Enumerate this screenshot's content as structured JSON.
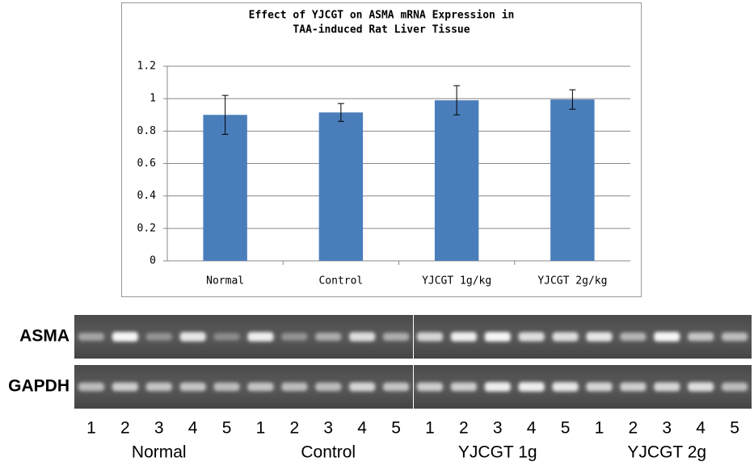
{
  "chart_data": {
    "type": "bar",
    "title": [
      "Effect of YJCGT on ASMA mRNA Expression in",
      "TAA-induced Rat Liver Tissue"
    ],
    "categories": [
      "Normal",
      "Control",
      "YJCGT 1g/kg",
      "YJCGT 2g/kg"
    ],
    "values": [
      0.9,
      0.915,
      0.99,
      0.995
    ],
    "errors": [
      0.12,
      0.055,
      0.09,
      0.06
    ],
    "color": "#4a7ebb",
    "ylim": [
      0,
      1.2
    ],
    "yticks": [
      0,
      0.2,
      0.4,
      0.6,
      0.8,
      1,
      1.2
    ],
    "grid": true
  },
  "gel": {
    "rows": [
      "ASMA",
      "GAPDH"
    ],
    "groups": [
      {
        "label": "Normal",
        "lanes": [
          "1",
          "2",
          "3",
          "4",
          "5"
        ]
      },
      {
        "label": "Control",
        "lanes": [
          "1",
          "2",
          "3",
          "4",
          "5"
        ]
      },
      {
        "label": "YJCGT 1g",
        "lanes": [
          "1",
          "2",
          "3",
          "4",
          "5"
        ]
      },
      {
        "label": "YJCGT 2g",
        "lanes": [
          "1",
          "2",
          "3",
          "4",
          "5"
        ]
      }
    ]
  }
}
